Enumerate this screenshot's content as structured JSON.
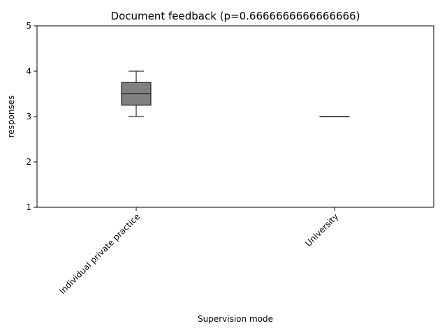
{
  "chart_data": {
    "type": "box",
    "title": "Document feedback (p=0.6666666666666666)",
    "xlabel": "Supervision mode",
    "ylabel": "responses",
    "ylim": [
      1,
      5
    ],
    "yticks": [
      1,
      2,
      3,
      4,
      5
    ],
    "categories": [
      "Individual private practice",
      "University"
    ],
    "boxes": [
      {
        "category": "Individual private practice",
        "whisker_low": 3,
        "q1": 3.25,
        "median": 3.5,
        "q3": 3.75,
        "whisker_high": 4
      },
      {
        "category": "University",
        "whisker_low": 3,
        "q1": 3,
        "median": 3,
        "q3": 3,
        "whisker_high": 3
      }
    ],
    "box_color": "#808080",
    "line_color": "#000000",
    "grid": false
  }
}
